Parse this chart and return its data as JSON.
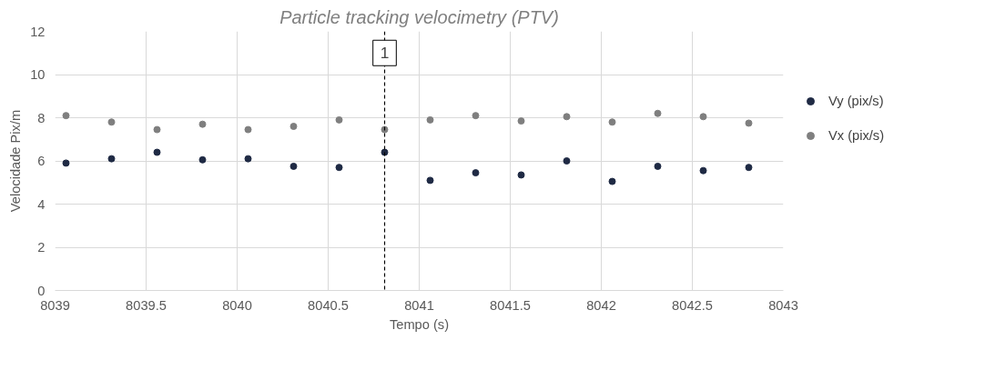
{
  "chart_data": {
    "type": "scatter",
    "title": "Particle tracking velocimetry (PTV)",
    "xlabel": "Tempo (s)",
    "ylabel": "Velocidade Pix/m",
    "x": [
      8039.06,
      8039.31,
      8039.56,
      8039.81,
      8040.06,
      8040.31,
      8040.56,
      8040.81,
      8041.06,
      8041.31,
      8041.56,
      8041.81,
      8042.06,
      8042.31,
      8042.56,
      8042.81
    ],
    "series": [
      {
        "name": "Vy (pix/s)",
        "color": "#1f2a44",
        "values": [
          5.9,
          6.1,
          6.4,
          6.05,
          6.1,
          5.75,
          5.7,
          6.4,
          5.1,
          5.45,
          5.35,
          6.0,
          5.05,
          5.75,
          5.55,
          5.7
        ]
      },
      {
        "name": "Vx (pix/s)",
        "color": "#7f7f7f",
        "values": [
          8.1,
          7.8,
          7.45,
          7.7,
          7.45,
          7.6,
          7.9,
          7.45,
          7.9,
          8.1,
          7.85,
          8.05,
          7.8,
          8.2,
          8.05,
          7.75
        ]
      }
    ],
    "xlim": [
      8039,
      8043
    ],
    "xticks": [
      8039,
      8039.5,
      8040,
      8040.5,
      8041,
      8041.5,
      8042,
      8042.5,
      8043
    ],
    "ylim": [
      0,
      12
    ],
    "yticks": [
      0,
      2,
      4,
      6,
      8,
      10,
      12
    ],
    "ref_lines": [
      {
        "axis": "x",
        "value": 8040.81,
        "line_style": "dashed",
        "color": "#000000"
      }
    ],
    "annotations": [
      {
        "text": "1",
        "x": 8040.81,
        "y": 11
      }
    ],
    "grid": true,
    "legend": "right",
    "marker": "circle"
  }
}
